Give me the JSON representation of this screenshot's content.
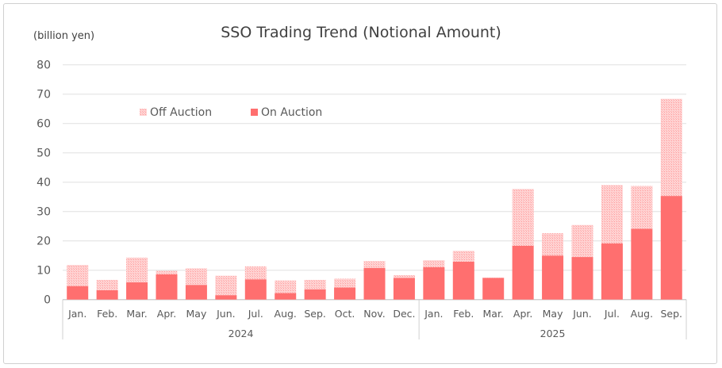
{
  "chart_data": {
    "type": "bar",
    "stacked": true,
    "title": "SSO Trading Trend (Notional Amount)",
    "ylabel": "(billion yen)",
    "ylim": [
      0,
      80
    ],
    "yticks": [
      0,
      10,
      20,
      30,
      40,
      50,
      60,
      70,
      80
    ],
    "grid": true,
    "legend_position": "top-left",
    "categories": [
      "Jan.",
      "Feb.",
      "Mar.",
      "Apr.",
      "May",
      "Jun.",
      "Jul.",
      "Aug.",
      "Sep.",
      "Oct.",
      "Nov.",
      "Dec.",
      "Jan.",
      "Feb.",
      "Mar.",
      "Apr.",
      "May",
      "Jun.",
      "Jul.",
      "Aug.",
      "Sep."
    ],
    "groups": [
      {
        "label": "2024",
        "count": 12
      },
      {
        "label": "2025",
        "count": 9
      }
    ],
    "series": [
      {
        "name": "On Auction",
        "color": "#ff6f6f",
        "values": [
          4.6,
          3.2,
          5.9,
          8.6,
          5.0,
          1.5,
          6.9,
          2.2,
          3.5,
          4.1,
          10.8,
          7.4,
          11.0,
          12.9,
          7.4,
          18.3,
          15.0,
          14.5,
          19.1,
          24.1,
          35.3
        ]
      },
      {
        "name": "Off Auction",
        "color": "#ffc4c4",
        "pattern": "hatched",
        "values": [
          7.2,
          3.5,
          8.4,
          1.2,
          5.6,
          6.6,
          4.4,
          4.3,
          3.2,
          3.0,
          2.3,
          0.9,
          2.4,
          3.7,
          0.1,
          19.4,
          7.6,
          10.9,
          19.9,
          14.6,
          33.1
        ]
      }
    ]
  }
}
